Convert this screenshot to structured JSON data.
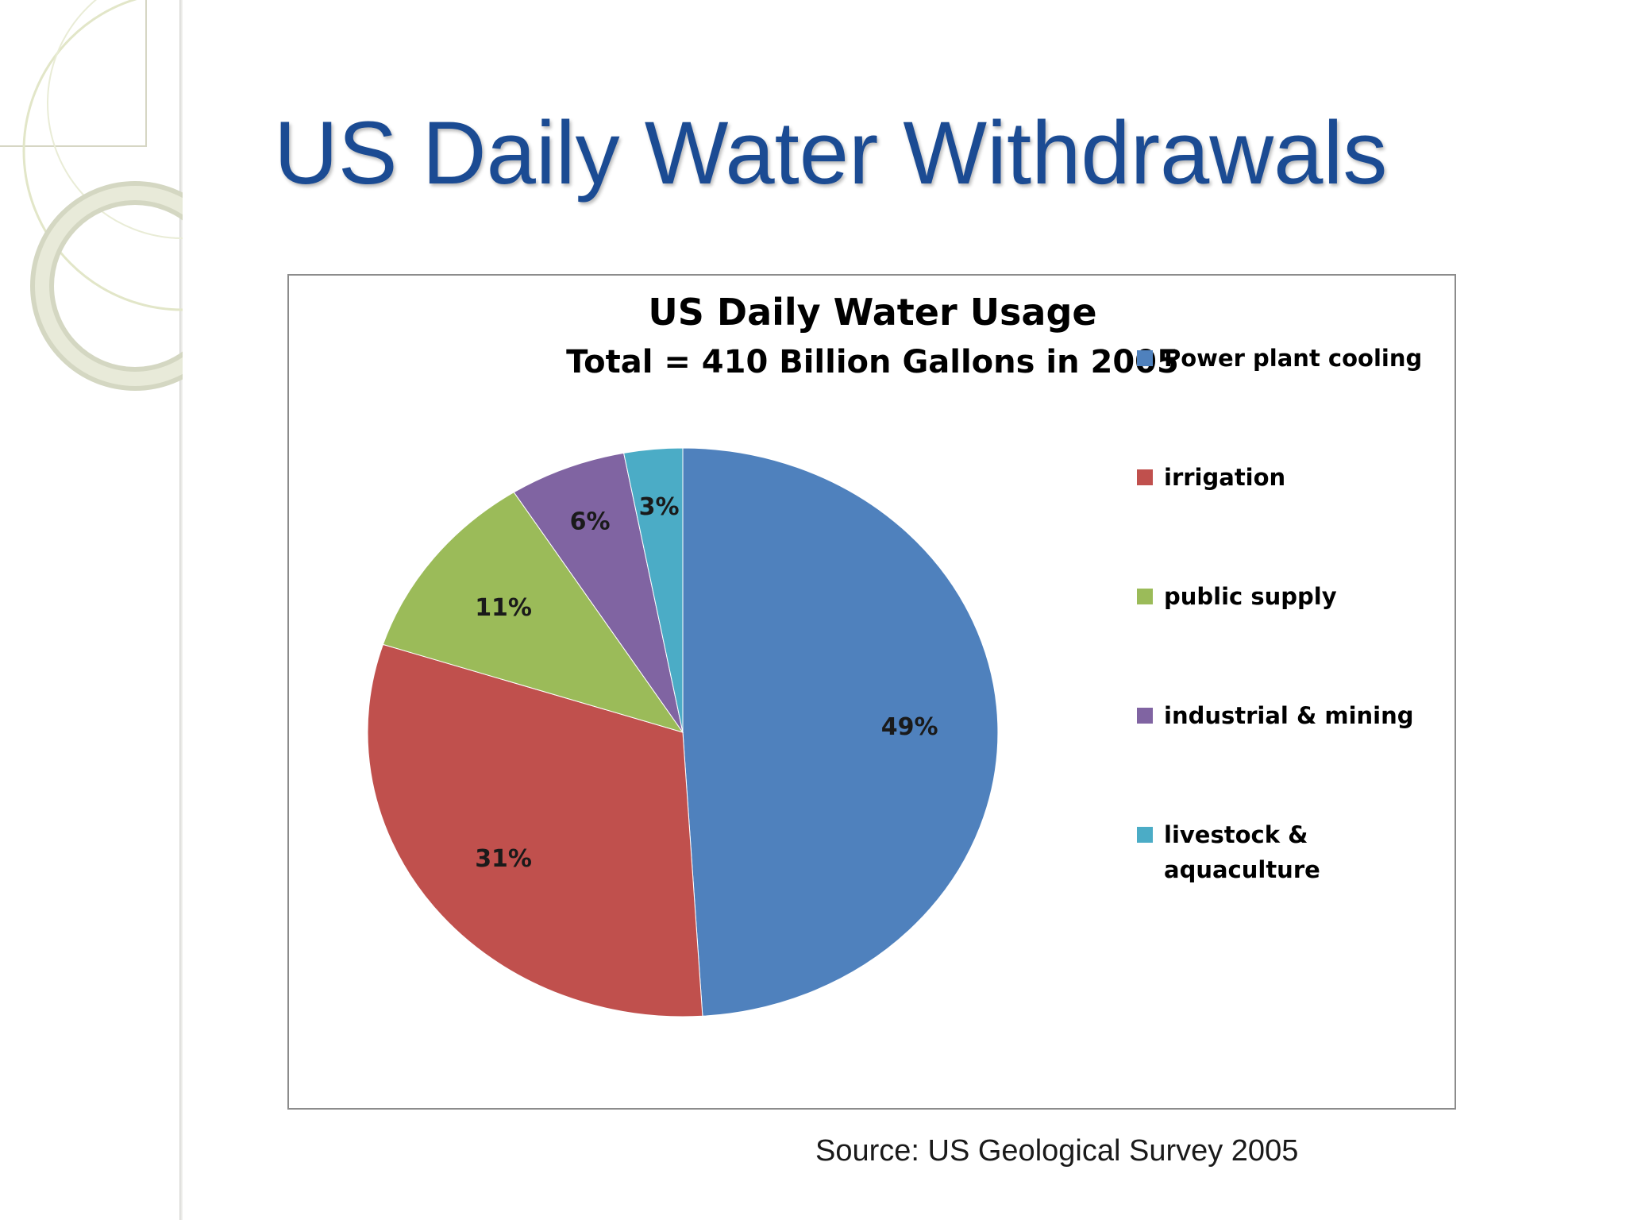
{
  "slide": {
    "title": "US Daily Water Withdrawals",
    "source": "Source:  US Geological Survey 2005"
  },
  "chart_data": {
    "type": "pie",
    "title": "US Daily Water Usage",
    "subtitle": "Total = 410 Billion Gallons  in 2005",
    "legend_position": "right",
    "slices": [
      {
        "label": "Power plant cooling",
        "value": 49,
        "display": "49%",
        "color": "#4f81bd"
      },
      {
        "label": "irrigation",
        "value": 31,
        "display": "31%",
        "color": "#c0504d"
      },
      {
        "label": "public supply",
        "value": 11,
        "display": "11%",
        "color": "#9bbb59"
      },
      {
        "label": "industrial & mining",
        "value": 6,
        "display": "6%",
        "color": "#8064a2"
      },
      {
        "label": "livestock & aquaculture",
        "value": 3,
        "display": "3%",
        "color": "#4bacc6"
      }
    ]
  }
}
